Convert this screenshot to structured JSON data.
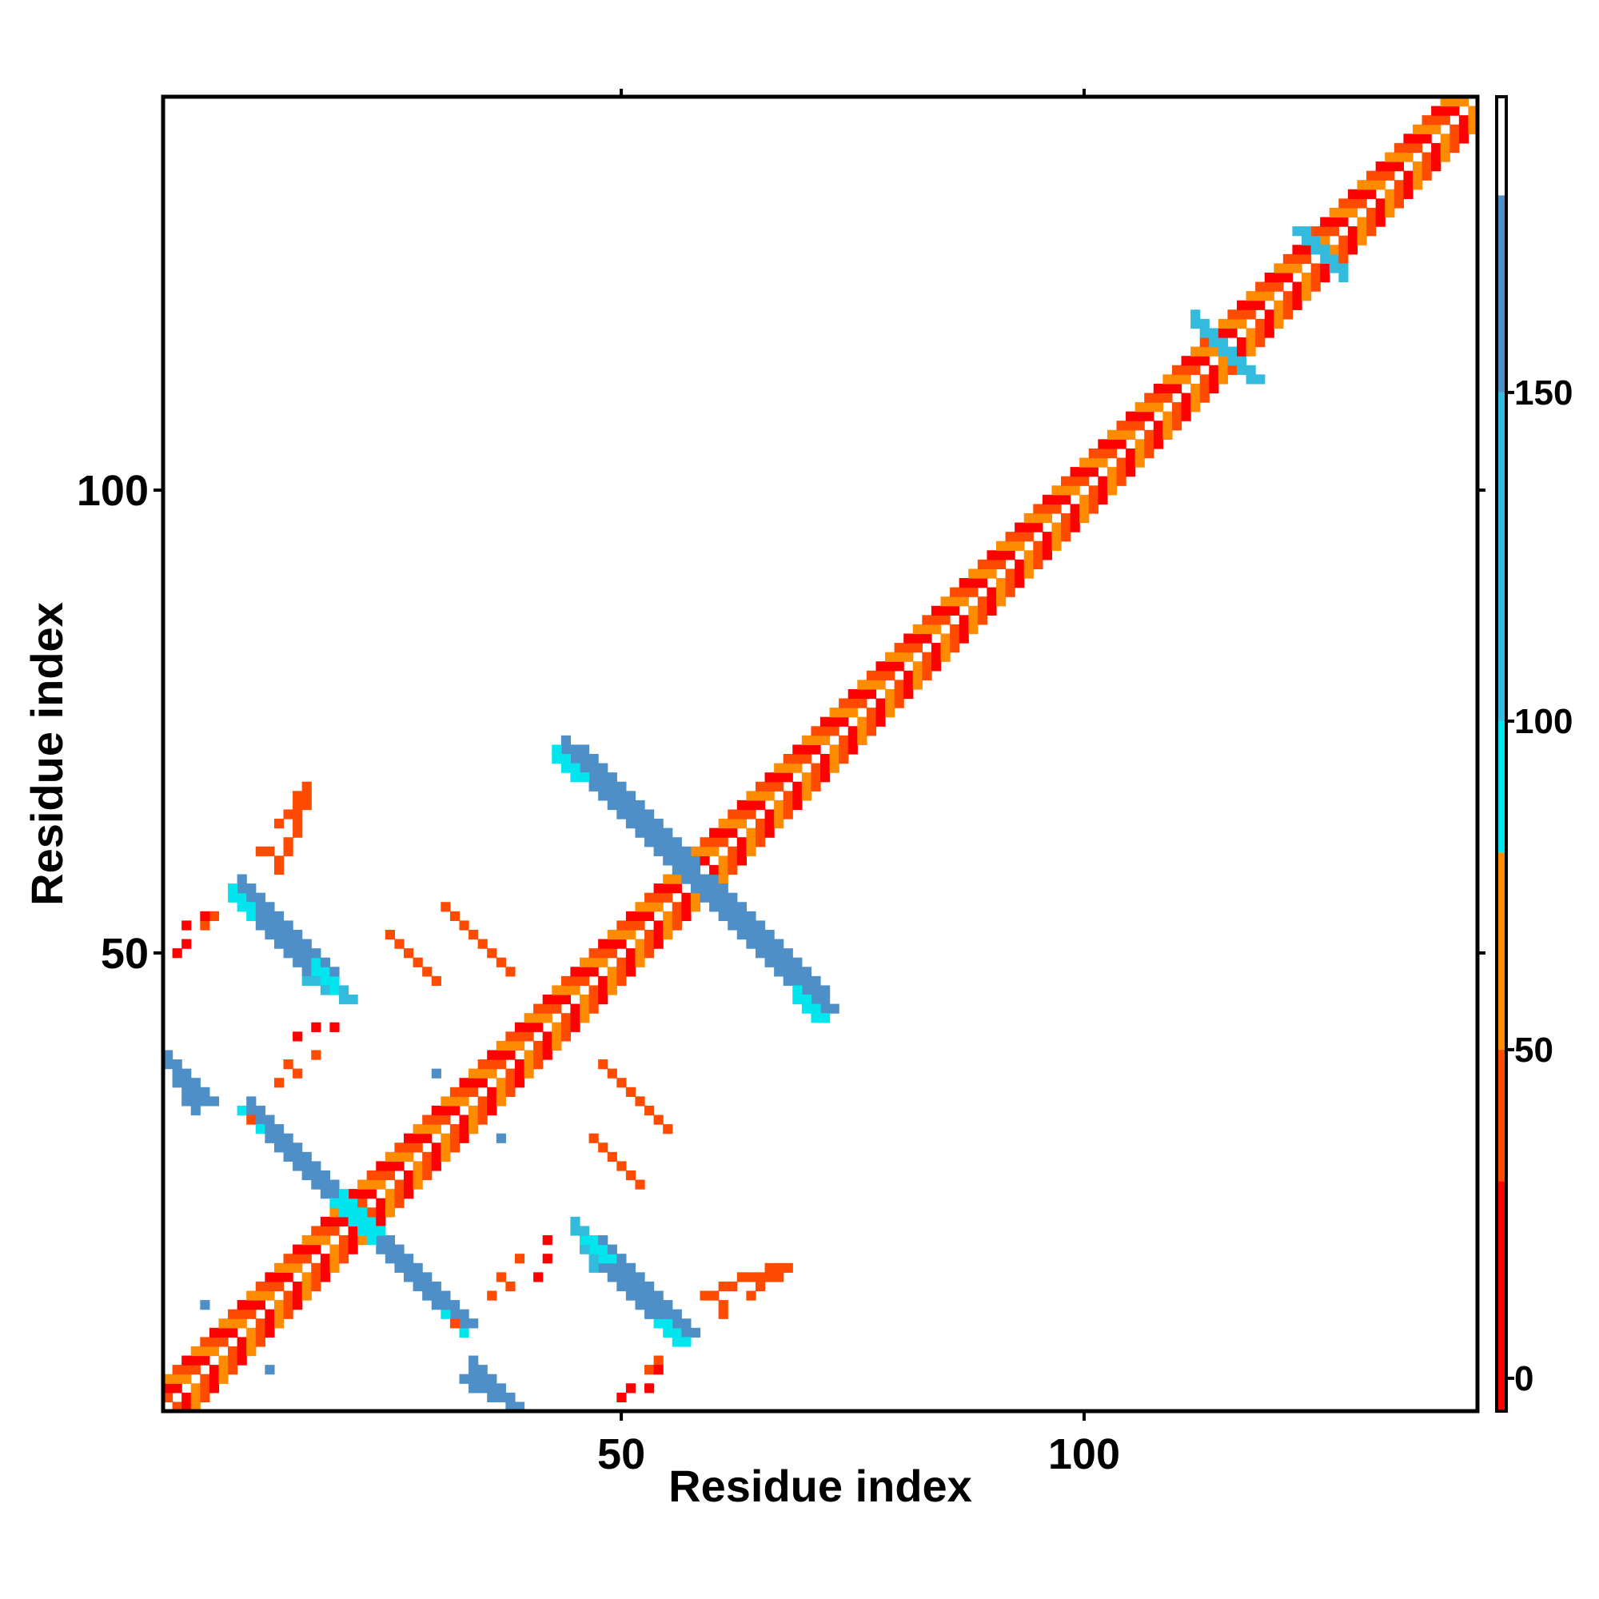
{
  "chart_data": {
    "type": "heatmap",
    "title": "",
    "xlabel": "Residue index",
    "ylabel": "Residue index",
    "xlim": [
      1,
      142
    ],
    "ylim": [
      1,
      142
    ],
    "x_ticks": [
      50,
      100
    ],
    "y_ticks": [
      50,
      100
    ],
    "grid": false,
    "colorbar": {
      "placement": "right",
      "range": [
        -5,
        195
      ],
      "ticks": [
        0,
        50,
        100,
        150
      ],
      "bands": [
        {
          "from": -5,
          "to": 30,
          "color": "#ff0000"
        },
        {
          "from": 30,
          "to": 50,
          "color": "#ff4b00"
        },
        {
          "from": 50,
          "to": 80,
          "color": "#ff8c00"
        },
        {
          "from": 80,
          "to": 100,
          "color": "#00e5ee"
        },
        {
          "from": 100,
          "to": 150,
          "color": "#33bbdd"
        },
        {
          "from": 150,
          "to": 180,
          "color": "#4f8fc8"
        },
        {
          "from": 180,
          "to": 195,
          "color": "#ffffff"
        }
      ]
    },
    "diagonal_band": {
      "from": 1,
      "to": 142,
      "colors": [
        "#ff0000",
        "#ff8c00",
        "#ff4b00"
      ]
    },
    "segments": [
      {
        "x1": 44,
        "y1": 72,
        "x2": 56,
        "y2": 60,
        "width": 3,
        "color": "#4f8fc8"
      },
      {
        "x1": 57,
        "y1": 58,
        "x2": 71,
        "y2": 44,
        "width": 3,
        "color": "#4f8fc8"
      },
      {
        "x1": 43,
        "y1": 71,
        "x2": 46,
        "y2": 69,
        "width": 1,
        "color": "#00e5ee"
      },
      {
        "x1": 69,
        "y1": 45,
        "x2": 72,
        "y2": 43,
        "width": 1,
        "color": "#00e5ee"
      },
      {
        "x1": 8,
        "y1": 56,
        "x2": 18,
        "y2": 46,
        "width": 3,
        "color": "#4f8fc8"
      },
      {
        "x1": 16,
        "y1": 47,
        "x2": 20,
        "y2": 45,
        "width": 2,
        "color": "#33bbdd"
      },
      {
        "x1": 8,
        "y1": 56,
        "x2": 9,
        "y2": 55,
        "width": 2,
        "color": "#00e5ee"
      },
      {
        "x1": 9,
        "y1": 33,
        "x2": 19,
        "y2": 23,
        "width": 3,
        "color": "#4f8fc8"
      },
      {
        "x1": 21,
        "y1": 21,
        "x2": 32,
        "y2": 10,
        "width": 3,
        "color": "#4f8fc8"
      },
      {
        "x1": 19,
        "y1": 23,
        "x2": 22,
        "y2": 20,
        "width": 3,
        "color": "#00e5ee"
      },
      {
        "x1": 31,
        "y1": 11,
        "x2": 33,
        "y2": 9,
        "width": 1,
        "color": "#00e5ee"
      },
      {
        "x1": 46,
        "y1": 19,
        "x2": 56,
        "y2": 9,
        "width": 3,
        "color": "#4f8fc8"
      },
      {
        "x1": 46,
        "y1": 19,
        "x2": 48,
        "y2": 17,
        "width": 2,
        "color": "#00e5ee"
      },
      {
        "x1": 54,
        "y1": 10,
        "x2": 56,
        "y2": 8,
        "width": 2,
        "color": "#00e5ee"
      },
      {
        "x1": 1,
        "y1": 38,
        "x2": 5,
        "y2": 34,
        "width": 2,
        "color": "#4f8fc8"
      },
      {
        "x1": 33,
        "y1": 4,
        "x2": 38,
        "y2": 1,
        "width": 2,
        "color": "#4f8fc8"
      },
      {
        "x1": 112,
        "y1": 118,
        "x2": 118,
        "y2": 112,
        "width": 2,
        "color": "#33bbdd"
      },
      {
        "x1": 123,
        "y1": 128,
        "x2": 127,
        "y2": 124,
        "width": 2,
        "color": "#33bbdd"
      },
      {
        "x1": 48,
        "y1": 38,
        "x2": 55,
        "y2": 31,
        "width": 1,
        "color": "#ff4b00"
      },
      {
        "x1": 25,
        "y1": 52,
        "x2": 30,
        "y2": 47,
        "width": 1,
        "color": "#ff4b00"
      },
      {
        "x1": 59,
        "y1": 13,
        "x2": 67,
        "y2": 16,
        "width": 1,
        "color": "#ff4b00"
      },
      {
        "x1": 13,
        "y1": 64,
        "x2": 16,
        "y2": 68,
        "width": 1,
        "color": "#ff4b00"
      }
    ],
    "cells": [
      {
        "x": 3,
        "y": 51,
        "color": "#ff0000"
      },
      {
        "x": 2,
        "y": 50,
        "color": "#ff0000"
      },
      {
        "x": 5,
        "y": 53,
        "color": "#ff4b00"
      },
      {
        "x": 6,
        "y": 54,
        "color": "#ff4b00"
      },
      {
        "x": 11,
        "y": 61,
        "color": "#ff4b00"
      },
      {
        "x": 12,
        "y": 61,
        "color": "#ff4b00"
      },
      {
        "x": 17,
        "y": 42,
        "color": "#ff0000"
      },
      {
        "x": 19,
        "y": 42,
        "color": "#ff0000"
      },
      {
        "x": 17,
        "y": 39,
        "color": "#ff4b00"
      },
      {
        "x": 15,
        "y": 37,
        "color": "#ff4b00"
      },
      {
        "x": 32,
        "y": 10,
        "color": "#ff4b00"
      },
      {
        "x": 38,
        "y": 14,
        "color": "#ff4b00"
      },
      {
        "x": 41,
        "y": 15,
        "color": "#ff0000"
      },
      {
        "x": 42,
        "y": 17,
        "color": "#ff0000"
      },
      {
        "x": 36,
        "y": 13,
        "color": "#ff4b00"
      },
      {
        "x": 50,
        "y": 2,
        "color": "#ff0000"
      },
      {
        "x": 53,
        "y": 3,
        "color": "#ff0000"
      },
      {
        "x": 54,
        "y": 5,
        "color": "#ff0000"
      },
      {
        "x": 5,
        "y": 12,
        "color": "#4f8fc8"
      },
      {
        "x": 12,
        "y": 5,
        "color": "#4f8fc8"
      },
      {
        "x": 37,
        "y": 30,
        "color": "#4f8fc8"
      },
      {
        "x": 30,
        "y": 37,
        "color": "#4f8fc8"
      }
    ]
  }
}
